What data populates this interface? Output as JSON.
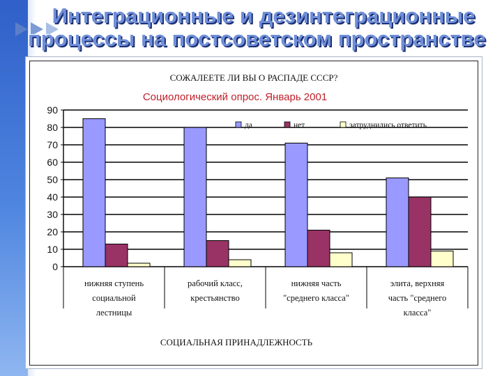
{
  "slide": {
    "title_line1": "Интеграционные и дезинтеграционные",
    "title_line2": "процессы на постсоветском пространстве"
  },
  "colors": {
    "sidebar": "#3f73d6",
    "title": "#6f8fd8",
    "subtitle": "#c0202a"
  },
  "chart_data": {
    "type": "bar",
    "title": "СОЖАЛЕЕТЕ ЛИ ВЫ О РАСПАДЕ СССР?",
    "subtitle": "Социологический опрос. Январь 2001",
    "xlabel": "СОЦИАЛЬНАЯ ПРИНАДЛЕЖНОСТЬ",
    "ylabel": "",
    "ylim": [
      0,
      90
    ],
    "yticks": [
      0,
      10,
      20,
      30,
      40,
      50,
      60,
      70,
      80,
      90
    ],
    "grid": true,
    "legend_position": "top-right",
    "categories": [
      [
        "нижняя ступень",
        "социальной",
        "лестницы"
      ],
      [
        "рабочий класс,",
        "крестьянство"
      ],
      [
        "нижняя часть",
        "\"среднего класса\""
      ],
      [
        "элита, верхняя",
        "часть \"среднего",
        "класса\""
      ]
    ],
    "series": [
      {
        "name": "да",
        "color": "#9999ff",
        "values": [
          85,
          80,
          71,
          51
        ]
      },
      {
        "name": "нет",
        "color": "#993366",
        "values": [
          13,
          15,
          21,
          40
        ]
      },
      {
        "name": "затруднились ответить",
        "color": "#ffffcc",
        "values": [
          2,
          4,
          8,
          9
        ]
      }
    ]
  }
}
